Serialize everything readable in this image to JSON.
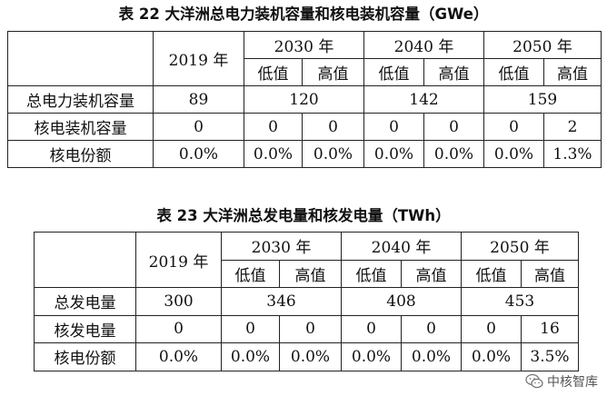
{
  "table1": {
    "title": "表 22 大洋洲总电力装机容量和核电装机容量（GWe）",
    "header": {
      "year2019": "2019 年",
      "y2030": "2030 年",
      "y2040": "2040 年",
      "y2050": "2050 年",
      "low": "低值",
      "high": "高值"
    },
    "rows": [
      {
        "label": "总电力装机容量",
        "v2019": "89",
        "v2030": "120",
        "v2040": "142",
        "v2050": "159"
      },
      {
        "label": "核电装机容量",
        "v2019": "0",
        "v2030_low": "0",
        "v2030_high": "0",
        "v2040_low": "0",
        "v2040_high": "0",
        "v2050_low": "0",
        "v2050_high": "2"
      },
      {
        "label": "核电份额",
        "v2019": "0.0%",
        "v2030_low": "0.0%",
        "v2030_high": "0.0%",
        "v2040_low": "0.0%",
        "v2040_high": "0.0%",
        "v2050_low": "0.0%",
        "v2050_high": "1.3%"
      }
    ]
  },
  "table2": {
    "title": "表 23 大洋洲总发电量和核发电量（TWh）",
    "header": {
      "year2019": "2019 年",
      "y2030": "2030 年",
      "y2040": "2040 年",
      "y2050": "2050 年",
      "low": "低值",
      "high": "高值"
    },
    "rows": [
      {
        "label": "总发电量",
        "v2019": "300",
        "v2030": "346",
        "v2040": "408",
        "v2050": "453"
      },
      {
        "label": "核发电量",
        "v2019": "0",
        "v2030_low": "0",
        "v2030_high": "0",
        "v2040_low": "0",
        "v2040_high": "0",
        "v2050_low": "0",
        "v2050_high": "16"
      },
      {
        "label": "核电份额",
        "v2019": "0.0%",
        "v2030_low": "0.0%",
        "v2030_high": "0.0%",
        "v2040_low": "0.0%",
        "v2040_high": "0.0%",
        "v2050_low": "0.0%",
        "v2050_high": "3.5%"
      }
    ]
  },
  "watermark": {
    "text": "中核智库",
    "icon": "wechat-icon"
  }
}
